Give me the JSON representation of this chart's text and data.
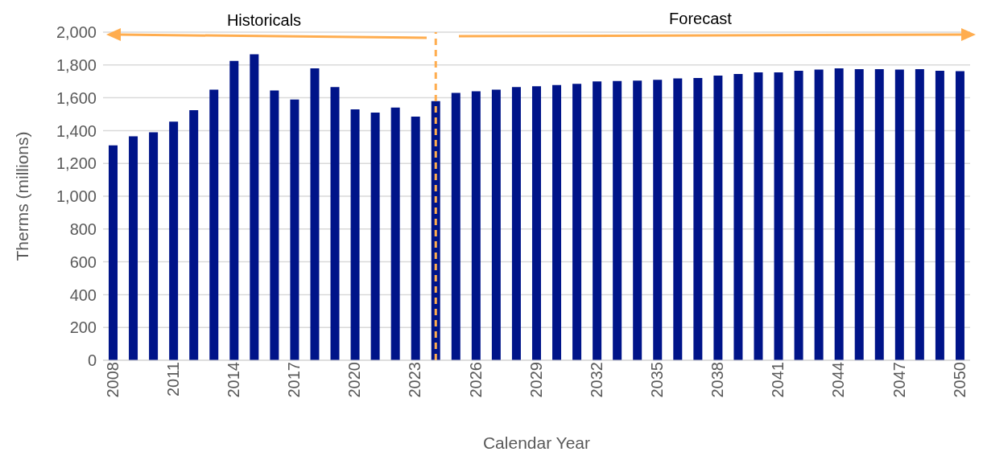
{
  "chart_data": {
    "type": "bar",
    "xlabel": "Calendar Year",
    "ylabel": "Therms (millions)",
    "annotations": [
      "Historicals",
      "Forecast"
    ],
    "x": [
      2008,
      2009,
      2010,
      2011,
      2012,
      2013,
      2014,
      2015,
      2016,
      2017,
      2018,
      2019,
      2020,
      2021,
      2022,
      2023,
      2024,
      2025,
      2026,
      2027,
      2028,
      2029,
      2030,
      2031,
      2032,
      2033,
      2034,
      2035,
      2036,
      2037,
      2038,
      2039,
      2040,
      2041,
      2042,
      2043,
      2044,
      2045,
      2046,
      2047,
      2048,
      2049,
      2050
    ],
    "values": [
      1310,
      1365,
      1390,
      1455,
      1525,
      1650,
      1825,
      1865,
      1645,
      1590,
      1780,
      1665,
      1530,
      1510,
      1540,
      1485,
      1580,
      1630,
      1640,
      1650,
      1665,
      1670,
      1678,
      1685,
      1700,
      1702,
      1705,
      1710,
      1718,
      1720,
      1735,
      1745,
      1755,
      1755,
      1765,
      1772,
      1780,
      1775,
      1775,
      1772,
      1775,
      1765,
      1762
    ],
    "color": "#001489",
    "xlim": [
      2007.5,
      2050.5
    ],
    "xticks": [
      2008,
      2011,
      2014,
      2017,
      2020,
      2023,
      2026,
      2029,
      2032,
      2035,
      2038,
      2041,
      2044,
      2047,
      2050
    ],
    "ylim": [
      0,
      2000
    ],
    "yticks": [
      0,
      200,
      400,
      600,
      800,
      {
        "value": 1000,
        "label": "1,000"
      },
      {
        "value": 1200,
        "label": "1,200"
      },
      {
        "value": 1400,
        "label": "1,400"
      },
      {
        "value": 1600,
        "label": "1,600"
      },
      {
        "value": 1800,
        "label": "1,800"
      },
      {
        "value": 2000,
        "label": "2,000"
      }
    ],
    "ref_lines": [
      {
        "axis": "x",
        "value": 2024,
        "color": "#ffad4f",
        "line_style": "dashed"
      }
    ],
    "grid": "y"
  }
}
